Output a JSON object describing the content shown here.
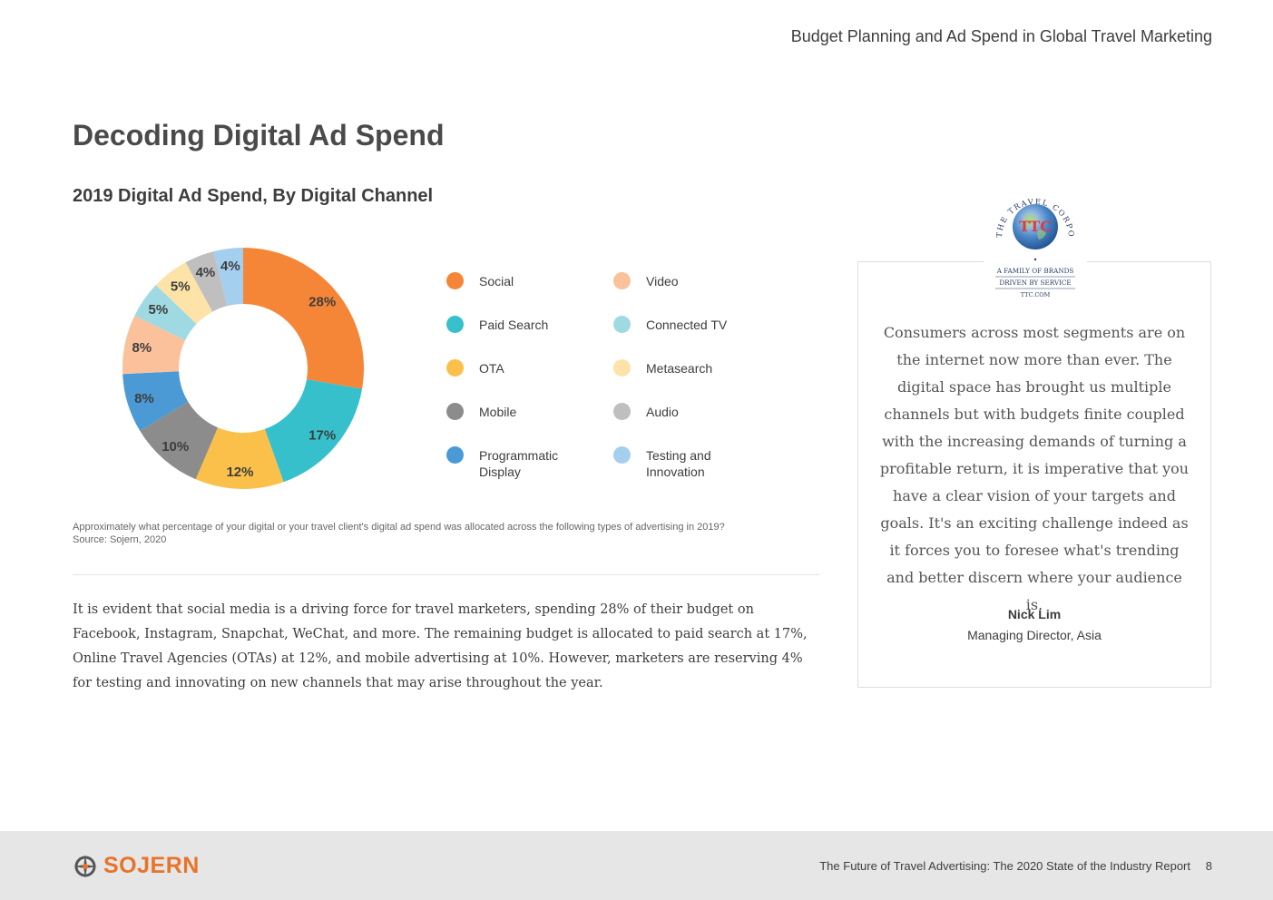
{
  "header": {
    "title": "Budget Planning and Ad Spend in Global Travel Marketing"
  },
  "page_title": "Decoding Digital Ad Spend",
  "chart_data": {
    "type": "pie",
    "title": "2019 Digital Ad Spend, By Digital Channel",
    "categories": [
      "Social",
      "Paid Search",
      "OTA",
      "Mobile",
      "Programmatic Display",
      "Video",
      "Connected TV",
      "Metasearch",
      "Audio",
      "Testing and Innovation"
    ],
    "values": [
      28,
      17,
      12,
      10,
      8,
      8,
      5,
      5,
      4,
      4
    ],
    "labels": [
      "28%",
      "17%",
      "12%",
      "10%",
      "8%",
      "8%",
      "5%",
      "5%",
      "4%",
      "4%"
    ],
    "colors": [
      "#f58638",
      "#36c0cb",
      "#fbc04a",
      "#8c8c8c",
      "#4b9ad6",
      "#fac19b",
      "#9fdae2",
      "#fde3a7",
      "#bfbfbf",
      "#a5cfee"
    ],
    "legend_position": "right",
    "legend_order": [
      0,
      5,
      1,
      6,
      2,
      7,
      3,
      8,
      4,
      9
    ]
  },
  "source_note": "Approximately what percentage of your digital or your travel client's digital ad spend was allocated across the following types of advertising in 2019? Source: Sojern, 2020",
  "body_text": "It is evident that social media is a driving force for travel marketers, spending 28% of their budget on Facebook, Instagram, Snapchat, WeChat, and more. The remaining budget is allocated to paid search at 17%, Online Travel Agencies (OTAs) at 12%, and mobile advertising at 10%. However, marketers are reserving 4% for testing and innovating on new channels that may arise throughout the year.",
  "quote": {
    "logo": {
      "arc_text": "THE TRAVEL CORPORATION",
      "monogram": "TTC",
      "line1": "A FAMILY OF BRANDS",
      "line2": "DRIVEN BY SERVICE",
      "url": "TTC.COM"
    },
    "text": "Consumers across most segments are on the internet now more than ever. The digital space has brought us multiple channels but with budgets finite coupled with the increasing demands of turning a profitable return, it is imperative that you have a clear vision of your targets and goals. It's an exciting challenge indeed as it forces you to foresee what's trending and better discern where your audience is.",
    "name": "Nick Lim",
    "role": "Managing Director, Asia"
  },
  "footer": {
    "logo_text": "SOJERN",
    "logo_color": "#e8732a",
    "report_title": "The Future of Travel Advertising: The 2020 State of the Industry Report",
    "page_number": "8"
  }
}
